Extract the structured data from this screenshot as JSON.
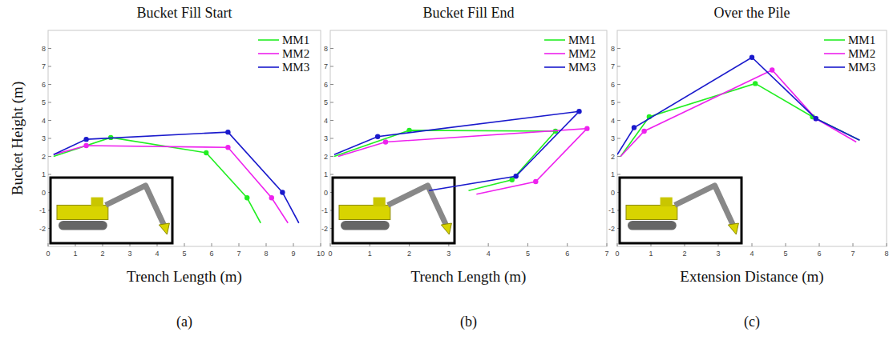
{
  "chart_data": [
    {
      "type": "line",
      "title": "Bucket Fill Start",
      "x_label": "Trench Length (m)",
      "y_label": "Bucket Height (m)",
      "label": "(a)",
      "xlim": [
        0,
        10
      ],
      "xticks": [
        0,
        1,
        2,
        3,
        4,
        5,
        6,
        7,
        8,
        9,
        10
      ],
      "ylim": [
        -3,
        9
      ],
      "yticks": [
        -2,
        -1,
        0,
        1,
        2,
        3,
        4,
        5,
        6,
        7,
        8
      ],
      "grid": false,
      "legend": "upper right",
      "series": [
        {
          "name": "MM1",
          "color": "#22ee22",
          "marker": "circle",
          "x": [
            0.2,
            2.3,
            5.8,
            7.3,
            7.8
          ],
          "values": [
            2.0,
            3.05,
            2.2,
            -0.3,
            -1.7
          ]
        },
        {
          "name": "MM2",
          "color": "#ee22ee",
          "marker": "circle",
          "x": [
            0.2,
            1.4,
            6.6,
            8.2,
            8.8
          ],
          "values": [
            2.1,
            2.6,
            2.5,
            -0.3,
            -1.7
          ]
        },
        {
          "name": "MM3",
          "color": "#1a1acc",
          "marker": "circle",
          "x": [
            0.2,
            1.4,
            6.6,
            8.6,
            9.2
          ],
          "values": [
            2.1,
            2.95,
            3.35,
            0.0,
            -1.7
          ]
        }
      ]
    },
    {
      "type": "line",
      "title": "Bucket Fill End",
      "x_label": "Trench Length (m)",
      "label": "(b)",
      "xlim": [
        0,
        7
      ],
      "xticks": [
        0,
        1,
        2,
        3,
        4,
        5,
        6,
        7
      ],
      "ylim": [
        -3,
        9
      ],
      "yticks": [
        -2,
        -1,
        0,
        1,
        2,
        3,
        4,
        5,
        6,
        7,
        8
      ],
      "grid": false,
      "legend": "upper right",
      "series": [
        {
          "name": "MM1",
          "color": "#22ee22",
          "marker": "circle",
          "x": [
            0.1,
            2.0,
            5.7,
            4.6,
            3.5
          ],
          "values": [
            2.0,
            3.45,
            3.4,
            0.7,
            0.1
          ]
        },
        {
          "name": "MM2",
          "color": "#ee22ee",
          "marker": "circle",
          "x": [
            0.2,
            1.4,
            6.5,
            5.2,
            3.7
          ],
          "values": [
            2.0,
            2.8,
            3.55,
            0.6,
            -0.1
          ]
        },
        {
          "name": "MM3",
          "color": "#1a1acc",
          "marker": "circle",
          "x": [
            0.1,
            1.2,
            6.3,
            4.7,
            2.5
          ],
          "values": [
            2.1,
            3.1,
            4.5,
            0.9,
            0.1
          ]
        }
      ]
    },
    {
      "type": "line",
      "title": "Over the Pile",
      "x_label": "Extension Distance (m)",
      "label": "(c)",
      "xlim": [
        0,
        8
      ],
      "xticks": [
        0,
        1,
        2,
        3,
        4,
        5,
        6,
        7,
        8
      ],
      "ylim": [
        -3,
        9
      ],
      "yticks": [
        -2,
        -1,
        0,
        1,
        2,
        3,
        4,
        5,
        6,
        7,
        8
      ],
      "grid": false,
      "legend": "upper right",
      "series": [
        {
          "name": "MM1",
          "color": "#22ee22",
          "marker": "circle",
          "x": [
            0.1,
            0.95,
            4.1,
            5.8,
            7.2
          ],
          "values": [
            2.0,
            4.2,
            6.05,
            4.2,
            2.9
          ]
        },
        {
          "name": "MM2",
          "color": "#ee22ee",
          "marker": "circle",
          "x": [
            0.1,
            0.8,
            4.6,
            5.9,
            7.1
          ],
          "values": [
            2.0,
            3.4,
            6.8,
            4.1,
            2.8
          ]
        },
        {
          "name": "MM3",
          "color": "#1a1acc",
          "marker": "circle",
          "x": [
            0.0,
            0.5,
            4.0,
            5.9,
            7.2
          ],
          "values": [
            2.1,
            3.6,
            7.5,
            4.1,
            2.9
          ]
        }
      ]
    }
  ]
}
